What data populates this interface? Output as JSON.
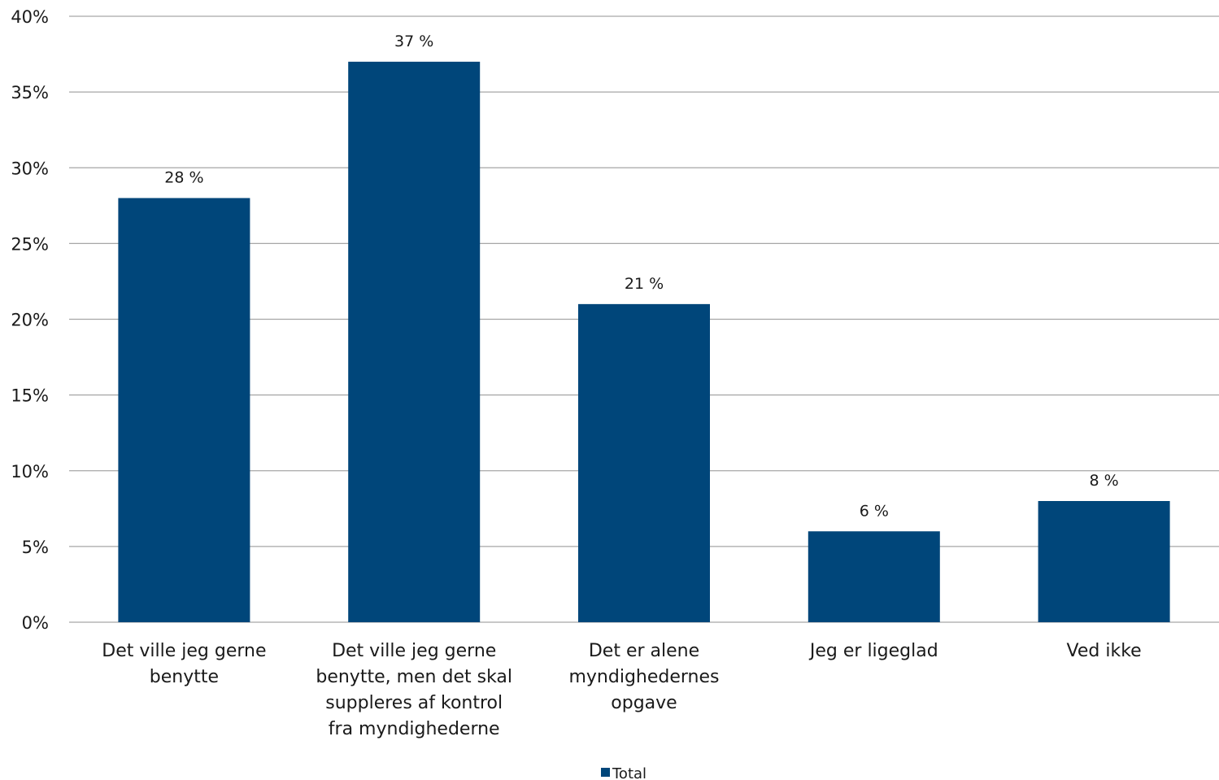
{
  "chart_data": {
    "type": "bar",
    "categories": [
      [
        "Det ville jeg gerne",
        "benytte"
      ],
      [
        "Det ville jeg gerne",
        "benytte, men det skal",
        "suppleres af kontrol",
        "fra myndighederne"
      ],
      [
        "Det er alene",
        "myndighedernes",
        "opgave"
      ],
      [
        "Jeg er ligeglad"
      ],
      [
        "Ved ikke"
      ]
    ],
    "series": [
      {
        "name": "Total",
        "values": [
          28,
          37,
          21,
          6,
          8
        ]
      }
    ],
    "data_labels": [
      "28 %",
      "37 %",
      "21 %",
      "6 %",
      "8 %"
    ],
    "ylim": [
      0,
      40
    ],
    "yticks": [
      0,
      5,
      10,
      15,
      20,
      25,
      30,
      35,
      40
    ],
    "ytick_labels": [
      "0%",
      "5%",
      "10%",
      "15%",
      "20%",
      "25%",
      "30%",
      "35%",
      "40%"
    ],
    "grid": true,
    "legend_position": "bottom-center",
    "bar_color": "#00467a",
    "grid_color": "#a6a6a6"
  }
}
